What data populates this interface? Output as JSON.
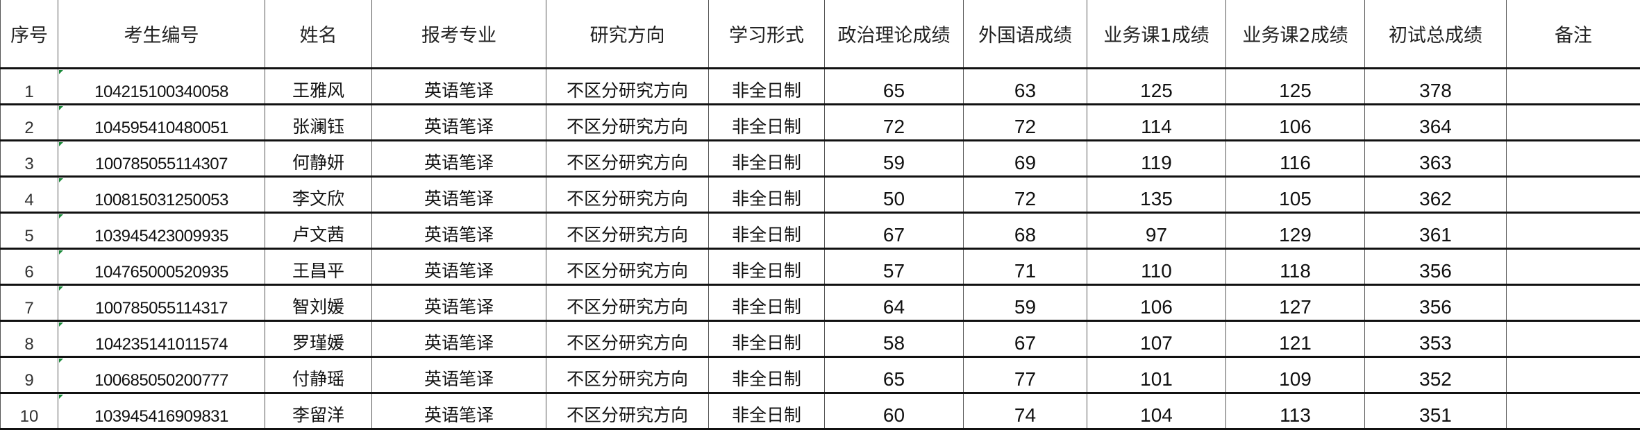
{
  "headers": [
    "序号",
    "考生编号",
    "姓名",
    "报考专业",
    "研究方向",
    "学习形式",
    "政治理论成绩",
    "外国语成绩",
    "业务课1成绩",
    "业务课2成绩",
    "初试总成绩",
    "备注"
  ],
  "rows": [
    [
      "1",
      "104215100340058",
      "王雅风",
      "英语笔译",
      "不区分研究方向",
      "非全日制",
      "65",
      "63",
      "125",
      "125",
      "378",
      ""
    ],
    [
      "2",
      "104595410480051",
      "张澜钰",
      "英语笔译",
      "不区分研究方向",
      "非全日制",
      "72",
      "72",
      "114",
      "106",
      "364",
      ""
    ],
    [
      "3",
      "100785055114307",
      "何静妍",
      "英语笔译",
      "不区分研究方向",
      "非全日制",
      "59",
      "69",
      "119",
      "116",
      "363",
      ""
    ],
    [
      "4",
      "100815031250053",
      "李文欣",
      "英语笔译",
      "不区分研究方向",
      "非全日制",
      "50",
      "72",
      "135",
      "105",
      "362",
      ""
    ],
    [
      "5",
      "103945423009935",
      "卢文茜",
      "英语笔译",
      "不区分研究方向",
      "非全日制",
      "67",
      "68",
      "97",
      "129",
      "361",
      ""
    ],
    [
      "6",
      "104765000520935",
      "王昌平",
      "英语笔译",
      "不区分研究方向",
      "非全日制",
      "57",
      "71",
      "110",
      "118",
      "356",
      ""
    ],
    [
      "7",
      "100785055114317",
      "智刘媛",
      "英语笔译",
      "不区分研究方向",
      "非全日制",
      "64",
      "59",
      "106",
      "127",
      "356",
      ""
    ],
    [
      "8",
      "104235141011574",
      "罗瑾媛",
      "英语笔译",
      "不区分研究方向",
      "非全日制",
      "58",
      "67",
      "107",
      "121",
      "353",
      ""
    ],
    [
      "9",
      "100685050200777",
      "付静瑶",
      "英语笔译",
      "不区分研究方向",
      "非全日制",
      "65",
      "77",
      "101",
      "109",
      "352",
      ""
    ],
    [
      "10",
      "103945416909831",
      "李留洋",
      "英语笔译",
      "不区分研究方向",
      "非全日制",
      "60",
      "74",
      "104",
      "113",
      "351",
      ""
    ]
  ]
}
